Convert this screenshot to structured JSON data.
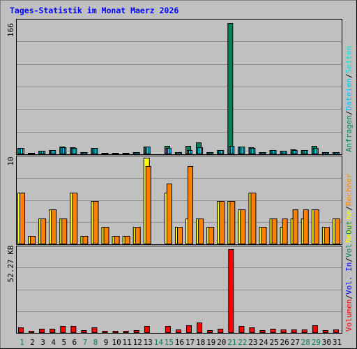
{
  "title": "Tages-Statistik im Monat Maerz 2026",
  "colors": {
    "background": "#C0C0C0",
    "frame": "#808080",
    "gridline": "#8c8c8c",
    "title": "#0000ff",
    "requests": "#00805c",
    "files": "#00c0ff",
    "pages": "#00e0e0",
    "visits": "#ffff00",
    "sites": "#ff8000",
    "kbytes": "#ff0000",
    "day_weekday": "#000000",
    "day_weekend": "#00805c"
  },
  "legend_top": [
    "Anfragen",
    "Dateien",
    "Seiten"
  ],
  "legend_mid": [
    "Besuche",
    "Rechner"
  ],
  "legend_bottom": [
    "Volumen",
    "Vol. In",
    "Vol. Out"
  ],
  "legend_sep": "/",
  "axis_top_max": "166",
  "axis_mid_max": "10",
  "axis_bottom_max": "52.27 KB",
  "chart_data": {
    "type": "bar",
    "title": "Tages-Statistik im Monat Maerz 2026",
    "x": [
      "1",
      "2",
      "3",
      "4",
      "5",
      "6",
      "7",
      "8",
      "9",
      "10",
      "11",
      "12",
      "13",
      "14",
      "15",
      "16",
      "17",
      "18",
      "19",
      "20",
      "21",
      "22",
      "23",
      "24",
      "25",
      "26",
      "27",
      "28",
      "29",
      "30",
      "31"
    ],
    "weekend_days": [
      "1",
      "7",
      "8",
      "14",
      "15",
      "21",
      "22",
      "28",
      "29"
    ],
    "panels": [
      {
        "name": "top",
        "ylim": [
          0,
          166
        ],
        "series": [
          {
            "name": "Anfragen",
            "values": [
              8,
              2,
              4,
              5,
              10,
              9,
              3,
              8,
              2,
              2,
              2,
              3,
              10,
              0,
              11,
              3,
              11,
              15,
              3,
              5,
              166,
              10,
              9,
              3,
              5,
              4,
              6,
              5,
              11,
              3,
              3
            ]
          },
          {
            "name": "Dateien",
            "values": [
              8,
              2,
              4,
              5,
              9,
              8,
              3,
              8,
              2,
              2,
              2,
              3,
              10,
              0,
              8,
              3,
              5,
              9,
              3,
              5,
              11,
              10,
              8,
              3,
              5,
              4,
              5,
              5,
              8,
              3,
              3
            ]
          },
          {
            "name": "Seiten",
            "values": [
              8,
              2,
              4,
              5,
              9,
              8,
              3,
              8,
              2,
              2,
              2,
              3,
              10,
              0,
              8,
              3,
              5,
              9,
              3,
              5,
              11,
              10,
              8,
              3,
              5,
              4,
              5,
              5,
              8,
              3,
              3
            ]
          }
        ]
      },
      {
        "name": "middle",
        "ylim": [
          0,
          10
        ],
        "series": [
          {
            "name": "Besuche",
            "values": [
              6,
              1,
              3,
              4,
              3,
              6,
              1,
              5,
              2,
              1,
              1,
              2,
              10,
              0,
              6,
              2,
              3,
              3,
              2,
              5,
              5,
              4,
              6,
              2,
              3,
              2,
              3,
              3,
              4,
              2,
              3
            ]
          },
          {
            "name": "Rechner",
            "values": [
              6,
              1,
              3,
              4,
              3,
              6,
              1,
              5,
              2,
              1,
              1,
              2,
              9,
              0,
              7,
              2,
              9,
              3,
              2,
              5,
              5,
              4,
              6,
              2,
              3,
              3,
              4,
              4,
              4,
              2,
              3
            ]
          }
        ]
      },
      {
        "name": "bottom",
        "ylim": [
          0,
          52.27
        ],
        "unit": "KB",
        "series": [
          {
            "name": "Volumen",
            "values": [
              3.5,
              1.2,
              2.5,
              2.5,
              4.5,
              4.5,
              1.8,
              3.5,
              1.4,
              1.4,
              1.4,
              1.8,
              4.5,
              0,
              4.5,
              2.2,
              5.0,
              6.5,
              1.8,
              2.5,
              52.27,
              4.5,
              3.5,
              1.8,
              2.5,
              2.2,
              2.2,
              2.2,
              4.8,
              1.8,
              2.2
            ]
          }
        ]
      }
    ]
  }
}
